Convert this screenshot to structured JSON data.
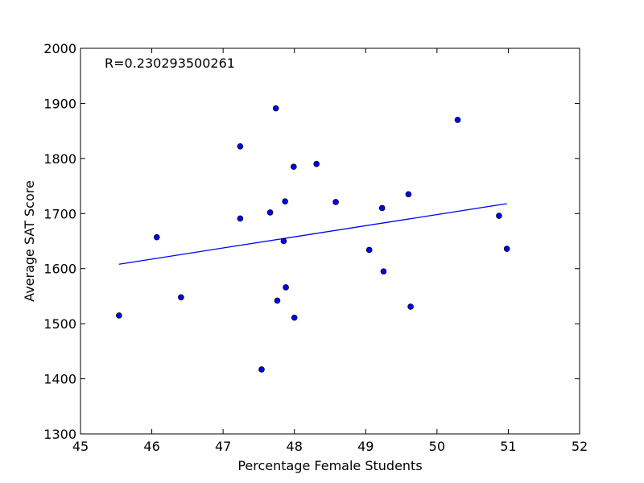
{
  "chart_data": {
    "type": "scatter",
    "xlabel": "Percentage Female Students",
    "ylabel": "Average SAT Score",
    "xlim": [
      45,
      52
    ],
    "ylim": [
      1300,
      2000
    ],
    "xticks": [
      "45",
      "46",
      "47",
      "48",
      "49",
      "50",
      "51",
      "52"
    ],
    "yticks": [
      "1300",
      "1400",
      "1500",
      "1600",
      "1700",
      "1800",
      "1900",
      "2000"
    ],
    "grid": false,
    "annotation": "R=0.230293500261",
    "marker_color": "#0000ff",
    "line_color": "#0000ff",
    "points": [
      {
        "x": 45.54,
        "y": 1515
      },
      {
        "x": 46.07,
        "y": 1657
      },
      {
        "x": 46.41,
        "y": 1548
      },
      {
        "x": 47.24,
        "y": 1822
      },
      {
        "x": 47.24,
        "y": 1691
      },
      {
        "x": 47.54,
        "y": 1417
      },
      {
        "x": 47.66,
        "y": 1702
      },
      {
        "x": 47.74,
        "y": 1891
      },
      {
        "x": 47.76,
        "y": 1542
      },
      {
        "x": 47.85,
        "y": 1650
      },
      {
        "x": 47.87,
        "y": 1722
      },
      {
        "x": 47.88,
        "y": 1566
      },
      {
        "x": 47.99,
        "y": 1785
      },
      {
        "x": 48.0,
        "y": 1511
      },
      {
        "x": 48.31,
        "y": 1790
      },
      {
        "x": 48.58,
        "y": 1721
      },
      {
        "x": 49.05,
        "y": 1634
      },
      {
        "x": 49.23,
        "y": 1710
      },
      {
        "x": 49.25,
        "y": 1595
      },
      {
        "x": 49.6,
        "y": 1735
      },
      {
        "x": 49.63,
        "y": 1531
      },
      {
        "x": 50.29,
        "y": 1870
      },
      {
        "x": 50.87,
        "y": 1696
      },
      {
        "x": 50.98,
        "y": 1636
      }
    ],
    "fit_line": {
      "x": [
        45.54,
        50.98
      ],
      "y": [
        1608,
        1718
      ]
    }
  }
}
